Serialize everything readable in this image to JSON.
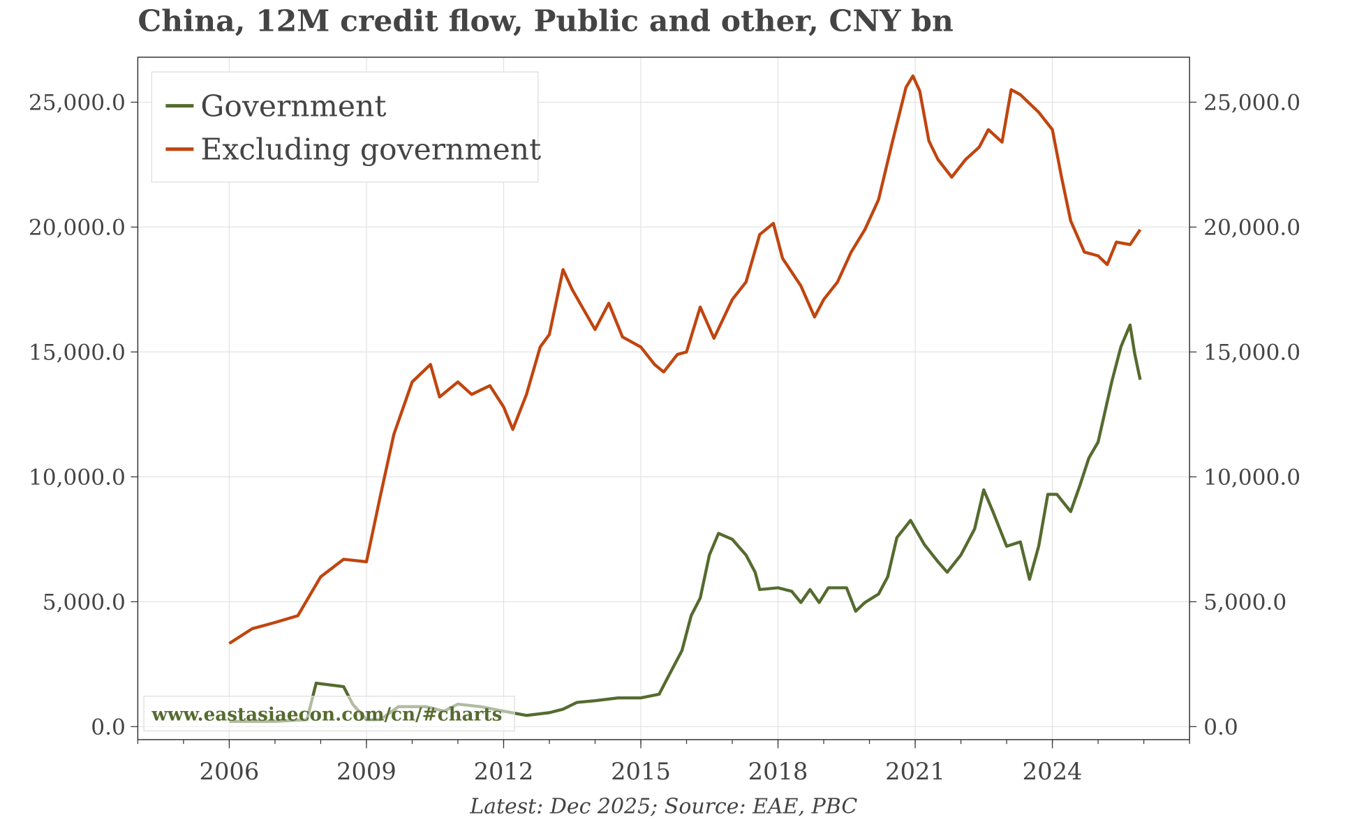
{
  "chart_data": {
    "type": "line",
    "title": "China, 12M credit flow, Public and other, CNY bn",
    "source": "Latest: Dec 2025; Source: EAE, PBC",
    "watermark": "www.eastasiaecon.com/cn/#charts",
    "xlim": [
      2004,
      2027
    ],
    "xticks": [
      2006,
      2009,
      2012,
      2015,
      2018,
      2021,
      2024
    ],
    "ylim": [
      -520,
      26800
    ],
    "y2lim": [
      -520,
      26800
    ],
    "yticks": [
      {
        "value": 0,
        "label": "0.0"
      },
      {
        "value": 5000,
        "label": "5,000.0"
      },
      {
        "value": 10000,
        "label": "10,000.0"
      },
      {
        "value": 15000,
        "label": "15,000.0"
      },
      {
        "value": 20000,
        "label": "20,000.0"
      },
      {
        "value": 25000,
        "label": "25,000.0"
      }
    ],
    "y2ticks": [
      {
        "value": 0,
        "label": "0.0"
      },
      {
        "value": 5000,
        "label": "5,000.0"
      },
      {
        "value": 10000,
        "label": "10,000.0"
      },
      {
        "value": 15000,
        "label": "15,000.0"
      },
      {
        "value": 20000,
        "label": "20,000.0"
      },
      {
        "value": 25000,
        "label": "25,000.0"
      }
    ],
    "grid": true,
    "legend": "upper left",
    "series": [
      {
        "name": "Government",
        "color": "#556b2f",
        "x": [
          2006.0,
          2007.0,
          2007.7,
          2007.9,
          2008.5,
          2008.7,
          2009.0,
          2009.3,
          2009.7,
          2010.3,
          2010.7,
          2011.0,
          2011.5,
          2012.0,
          2012.5,
          2013.0,
          2013.3,
          2013.6,
          2014.0,
          2014.5,
          2015.0,
          2015.4,
          2015.6,
          2015.9,
          2016.1,
          2016.3,
          2016.5,
          2016.7,
          2017.0,
          2017.3,
          2017.5,
          2017.6,
          2018.0,
          2018.3,
          2018.5,
          2018.7,
          2018.9,
          2019.1,
          2019.5,
          2019.7,
          2019.9,
          2020.2,
          2020.4,
          2020.6,
          2020.9,
          2021.2,
          2021.5,
          2021.7,
          2022.0,
          2022.3,
          2022.5,
          2022.7,
          2023.0,
          2023.3,
          2023.5,
          2023.7,
          2023.9,
          2024.1,
          2024.4,
          2024.6,
          2024.8,
          2025.0,
          2025.3,
          2025.5,
          2025.7,
          2025.8,
          2025.92
        ],
        "values": [
          210,
          210,
          280,
          1740,
          1600,
          900,
          280,
          280,
          800,
          800,
          620,
          900,
          800,
          620,
          450,
          560,
          700,
          970,
          1040,
          1150,
          1150,
          1300,
          2000,
          3050,
          4440,
          5150,
          6870,
          7740,
          7500,
          6870,
          6180,
          5490,
          5560,
          5420,
          4970,
          5490,
          4970,
          5560,
          5560,
          4620,
          4970,
          5310,
          6000,
          7570,
          8260,
          7290,
          6600,
          6180,
          6870,
          7920,
          9480,
          8610,
          7220,
          7400,
          5900,
          7220,
          9300,
          9300,
          8610,
          9650,
          10760,
          11390,
          13820,
          15210,
          16080,
          14930,
          13890
        ]
      },
      {
        "name": "Excluding government",
        "color": "#c0450f",
        "x": [
          2006.0,
          2006.5,
          2007.0,
          2007.5,
          2008.0,
          2008.5,
          2009.0,
          2009.3,
          2009.6,
          2010.0,
          2010.4,
          2010.6,
          2011.0,
          2011.3,
          2011.7,
          2012.0,
          2012.2,
          2012.5,
          2012.8,
          2013.0,
          2013.3,
          2013.5,
          2014.0,
          2014.3,
          2014.6,
          2015.0,
          2015.3,
          2015.5,
          2015.8,
          2016.0,
          2016.3,
          2016.6,
          2017.0,
          2017.3,
          2017.6,
          2017.9,
          2018.1,
          2018.5,
          2018.8,
          2019.0,
          2019.3,
          2019.6,
          2019.9,
          2020.2,
          2020.5,
          2020.8,
          2020.95,
          2021.1,
          2021.3,
          2021.5,
          2021.8,
          2022.1,
          2022.4,
          2022.6,
          2022.9,
          2023.1,
          2023.3,
          2023.7,
          2024.0,
          2024.2,
          2024.4,
          2024.7,
          2025.0,
          2025.2,
          2025.4,
          2025.7,
          2025.92
        ],
        "values": [
          3333,
          3920,
          4170,
          4440,
          6000,
          6700,
          6600,
          9200,
          11700,
          13800,
          14500,
          13200,
          13800,
          13300,
          13650,
          12800,
          11900,
          13300,
          15200,
          15700,
          18300,
          17500,
          15900,
          16950,
          15600,
          15200,
          14500,
          14200,
          14900,
          15000,
          16800,
          15550,
          17100,
          17800,
          19700,
          20150,
          18750,
          17650,
          16400,
          17100,
          17800,
          19000,
          19900,
          21100,
          23400,
          25600,
          26050,
          25450,
          23450,
          22700,
          22000,
          22700,
          23200,
          23900,
          23400,
          25500,
          25300,
          24600,
          23900,
          22000,
          20250,
          19000,
          18850,
          18500,
          19400,
          19300,
          19900
        ]
      }
    ]
  }
}
